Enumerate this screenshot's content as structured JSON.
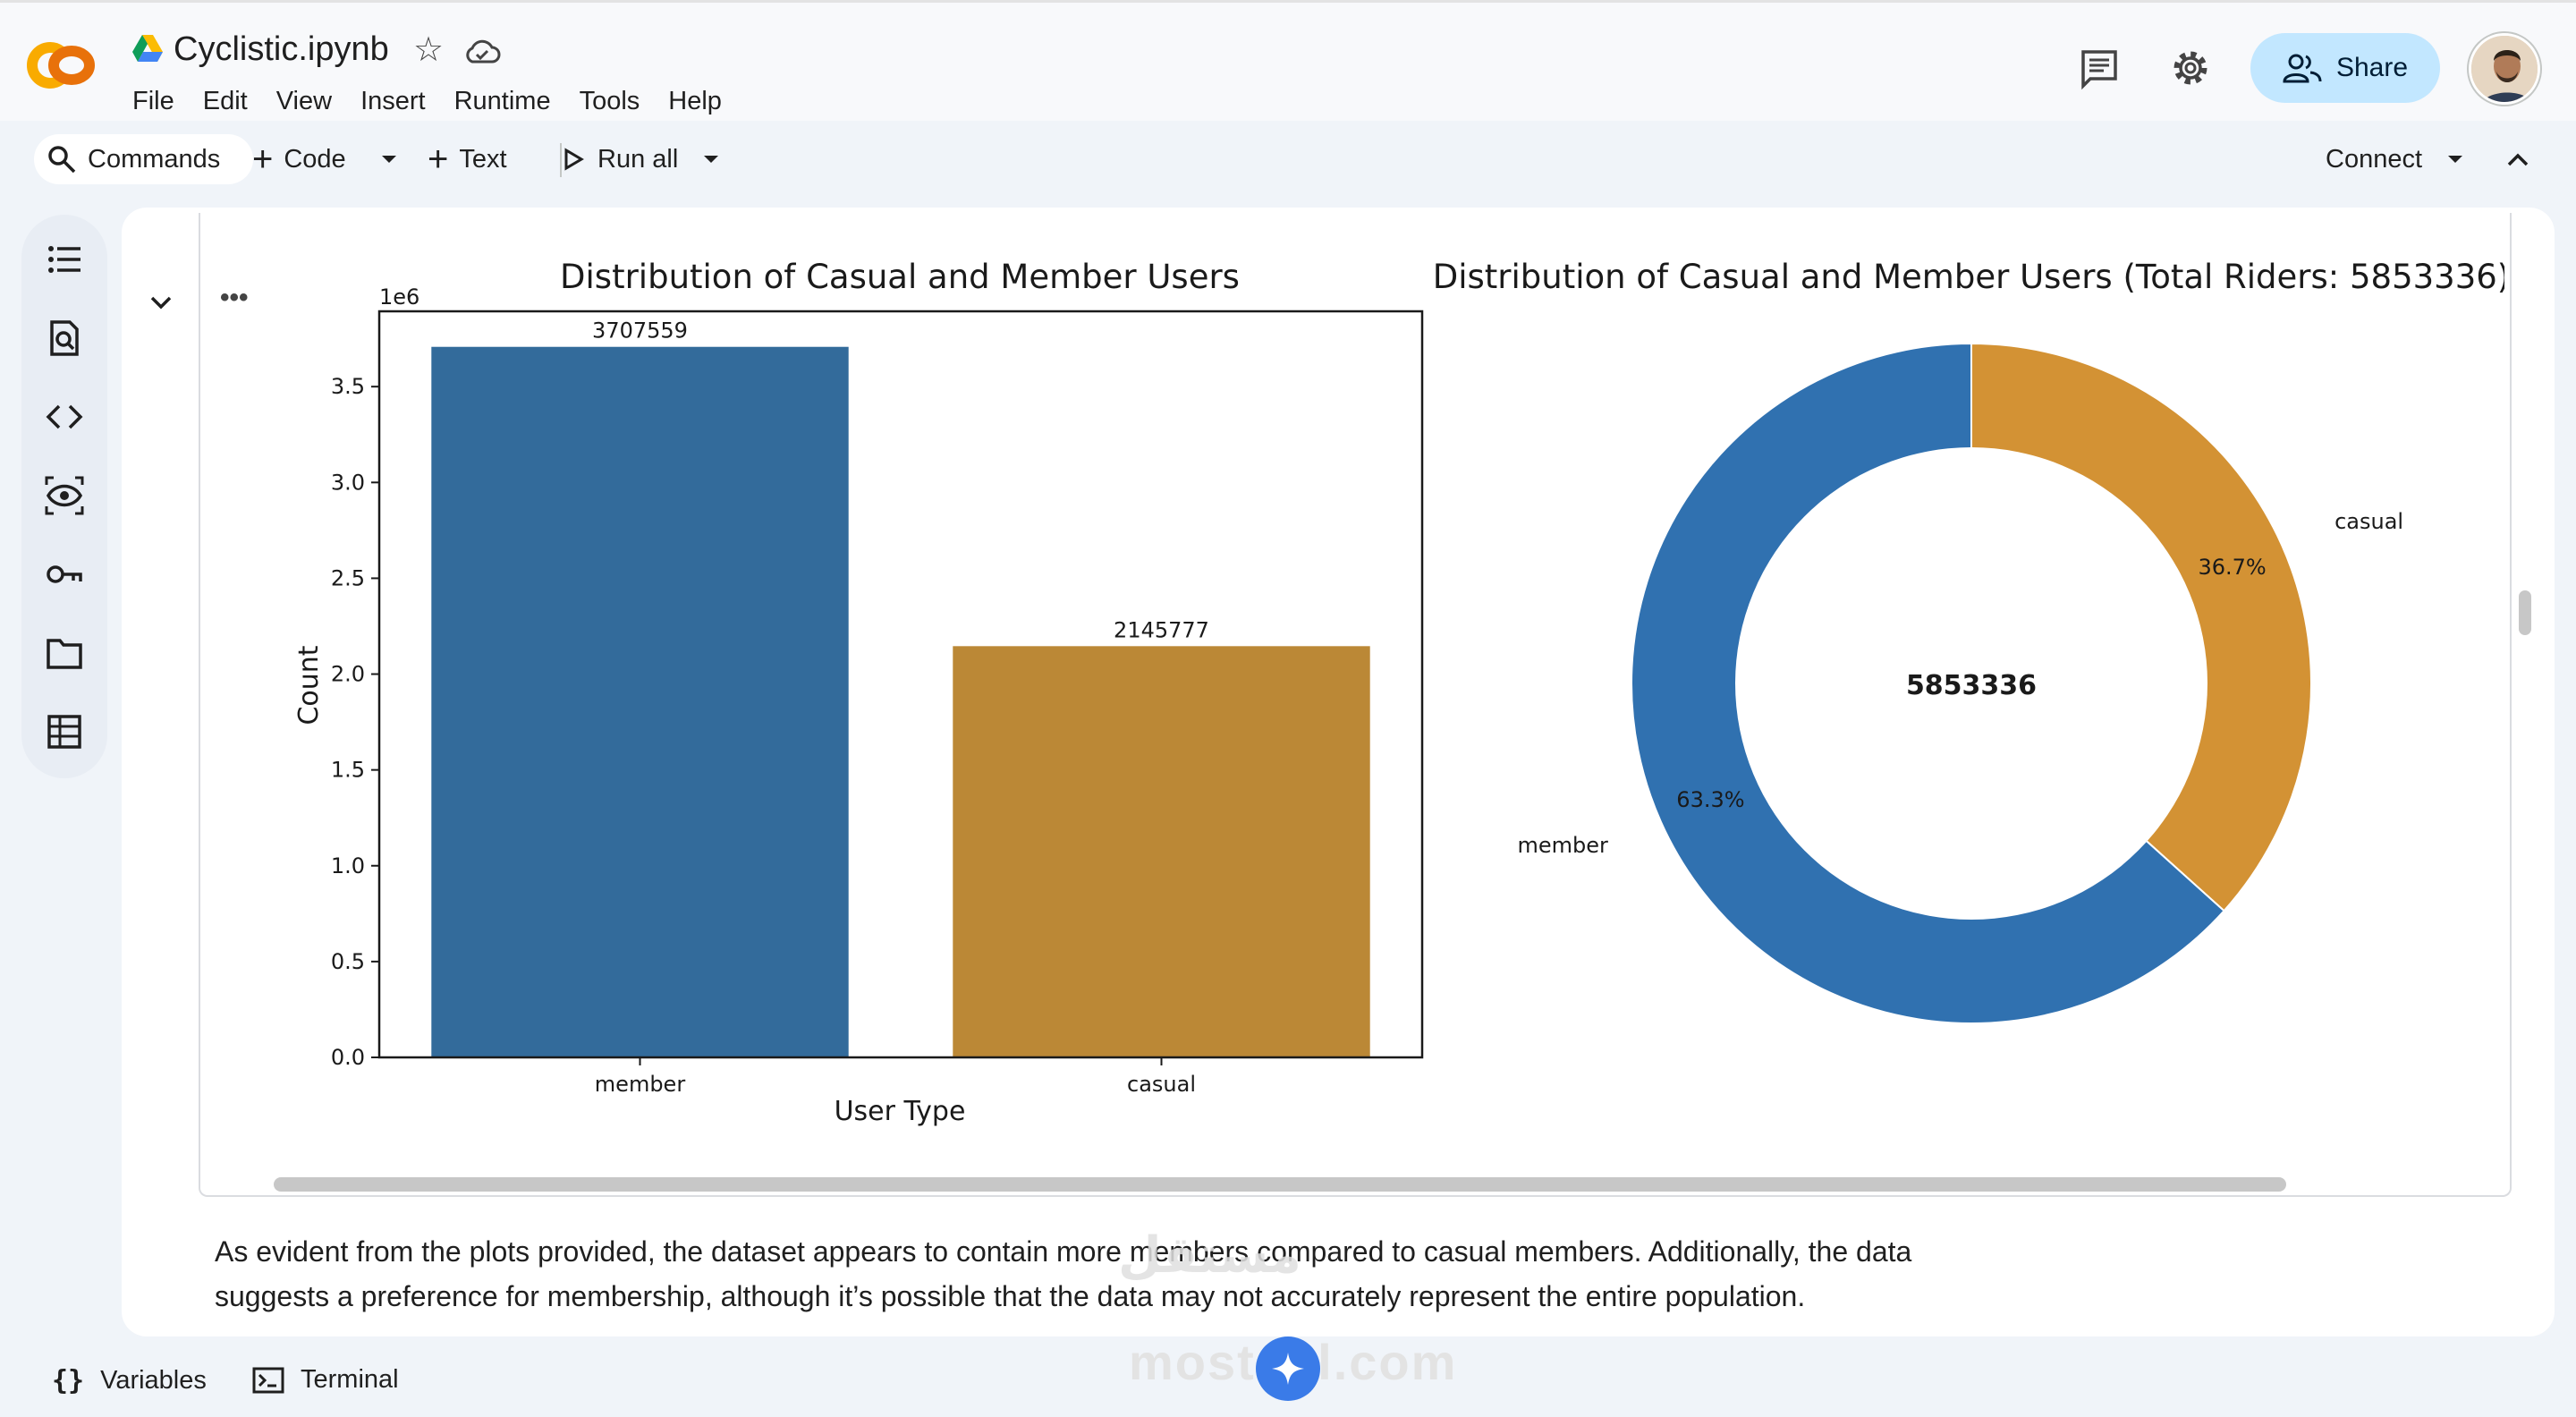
{
  "header": {
    "title": "Cyclistic.ipynb",
    "menu": [
      "File",
      "Edit",
      "View",
      "Insert",
      "Runtime",
      "Tools",
      "Help"
    ],
    "share_label": "Share"
  },
  "toolbar": {
    "commands_label": "Commands",
    "code_label": "Code",
    "text_label": "Text",
    "run_all_label": "Run all",
    "connect_label": "Connect"
  },
  "rail": {
    "icons": [
      "table-of-contents-icon",
      "find-replace-icon",
      "code-snippets-icon",
      "variable-inspector-icon",
      "secrets-key-icon",
      "files-folder-icon",
      "data-table-icon"
    ]
  },
  "chart_data": [
    {
      "type": "bar",
      "title": "Distribution of Casual and Member Users",
      "xlabel": "User Type",
      "ylabel": "Count",
      "y_multiplier_label": "1e6",
      "categories": [
        "member",
        "casual"
      ],
      "values": [
        3707559,
        2145777
      ],
      "data_labels": [
        "3707559",
        "2145777"
      ],
      "colors": [
        "#336b9b",
        "#bb8836"
      ],
      "ylim": [
        0,
        3.893
      ],
      "yticks": [
        "0.0",
        "0.5",
        "1.0",
        "1.5",
        "2.0",
        "2.5",
        "3.0",
        "3.5"
      ],
      "ytick_values": [
        0,
        0.5,
        1.0,
        1.5,
        2.0,
        2.5,
        3.0,
        3.5
      ],
      "grid": false
    },
    {
      "type": "pie",
      "title": "Distribution of Casual and Member Users (Total Riders: 5853336)",
      "donut": true,
      "center_label": "5853336",
      "slices": [
        {
          "label": "casual",
          "value": 2145777,
          "pct": "36.7%",
          "color": "#d39234"
        },
        {
          "label": "member",
          "value": 3707559,
          "pct": "63.3%",
          "color": "#3071b0"
        }
      ]
    }
  ],
  "markdown": {
    "line1": "As evident from the plots provided, the dataset appears to contain more members compared to casual members. Additionally, the data",
    "line2": "suggests a preference for membership, although it’s possible that the data may not accurately represent the entire population."
  },
  "bottom": {
    "variables_label": "Variables",
    "terminal_label": "Terminal"
  },
  "watermark": {
    "line1": "مستقل",
    "line2": "mostaql.com"
  }
}
